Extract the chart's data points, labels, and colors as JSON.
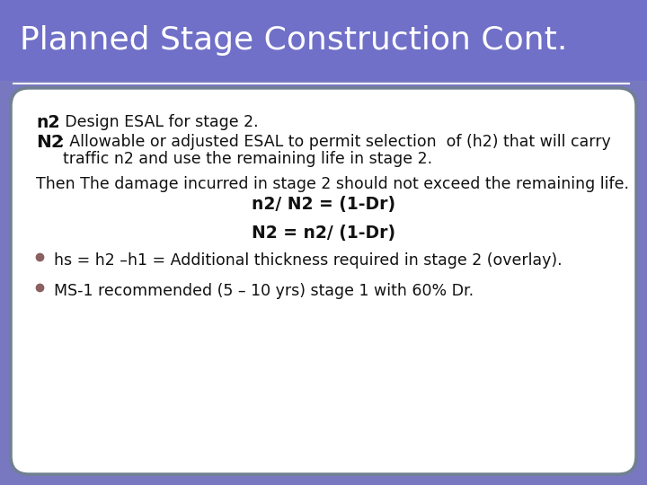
{
  "title": "Planned Stage Construction Cont.",
  "title_bg_color": "#7070C8",
  "slide_bg_color": "#7878C0",
  "title_text_color": "#FFFFFF",
  "body_bg_color": "#FFFFFF",
  "border_color": "#708090",
  "text_color": "#111111",
  "bullet_color": "#8B6060",
  "title_fontsize": 26,
  "body_fontsize": 12.5,
  "bold_fontsize": 13.5,
  "line1_prefix": "n2",
  "line1_suffix": ": Design ESAL for stage 2.",
  "line2_prefix": "N2",
  "line2_suffix": ": Allowable or adjusted ESAL to permit selection  of (h2) that will carry",
  "line3": "     traffic n2 and use the remaining life in stage 2.",
  "line4": "Then The damage incurred in stage 2 should not exceed the remaining life.",
  "line5": "n2/ N2 = (1-Dr)",
  "line6": "N2 = n2/ (1-Dr)",
  "bullet1": "hs = h2 –h1 = Additional thickness required in stage 2 (overlay).",
  "bullet2": "MS-1 recommended (5 – 10 yrs) stage 1 with 60% Dr."
}
